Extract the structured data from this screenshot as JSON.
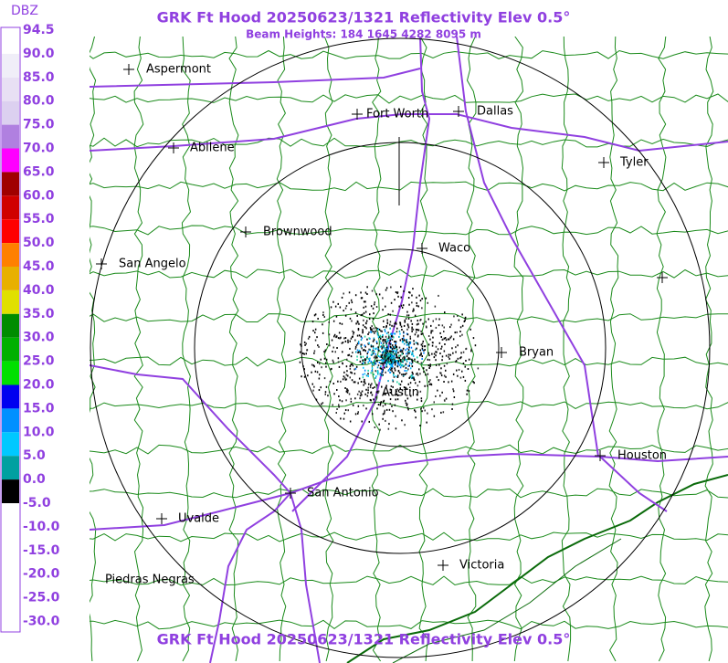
{
  "header": {
    "title": "GRK Ft Hood 20250623/1321 Reflectivity Elev 0.5°",
    "subtitle": "Beam Heights: 184 1645 4282 8095 m"
  },
  "legend": {
    "title": "DBZ",
    "labels": [
      "94.5",
      "90.0",
      "85.0",
      "80.0",
      "75.0",
      "70.0",
      "65.0",
      "60.0",
      "55.0",
      "50.0",
      "45.0",
      "40.0",
      "35.0",
      "30.0",
      "25.0",
      "20.0",
      "15.0",
      "10.0",
      "5.0",
      "0.0",
      "-5.0",
      "-10.0",
      "-15.0",
      "-20.0",
      "-25.0",
      "-30.0"
    ]
  },
  "cities": [
    {
      "label": "Aspermont"
    },
    {
      "label": "Fort Worth"
    },
    {
      "label": "Dallas"
    },
    {
      "label": "Abilene"
    },
    {
      "label": "Tyler"
    },
    {
      "label": "Brownwood"
    },
    {
      "label": "Waco"
    },
    {
      "label": "San Angelo"
    },
    {
      "label": "Bryan"
    },
    {
      "label": "Austin"
    },
    {
      "label": "Houston"
    },
    {
      "label": "San Antonio"
    },
    {
      "label": "Uvalde"
    },
    {
      "label": "Victoria"
    },
    {
      "label": "Piedras Negras"
    }
  ],
  "footer": {
    "title": "GRK Ft Hood 20250623/1321 Reflectivity Elev 0.5°"
  }
}
